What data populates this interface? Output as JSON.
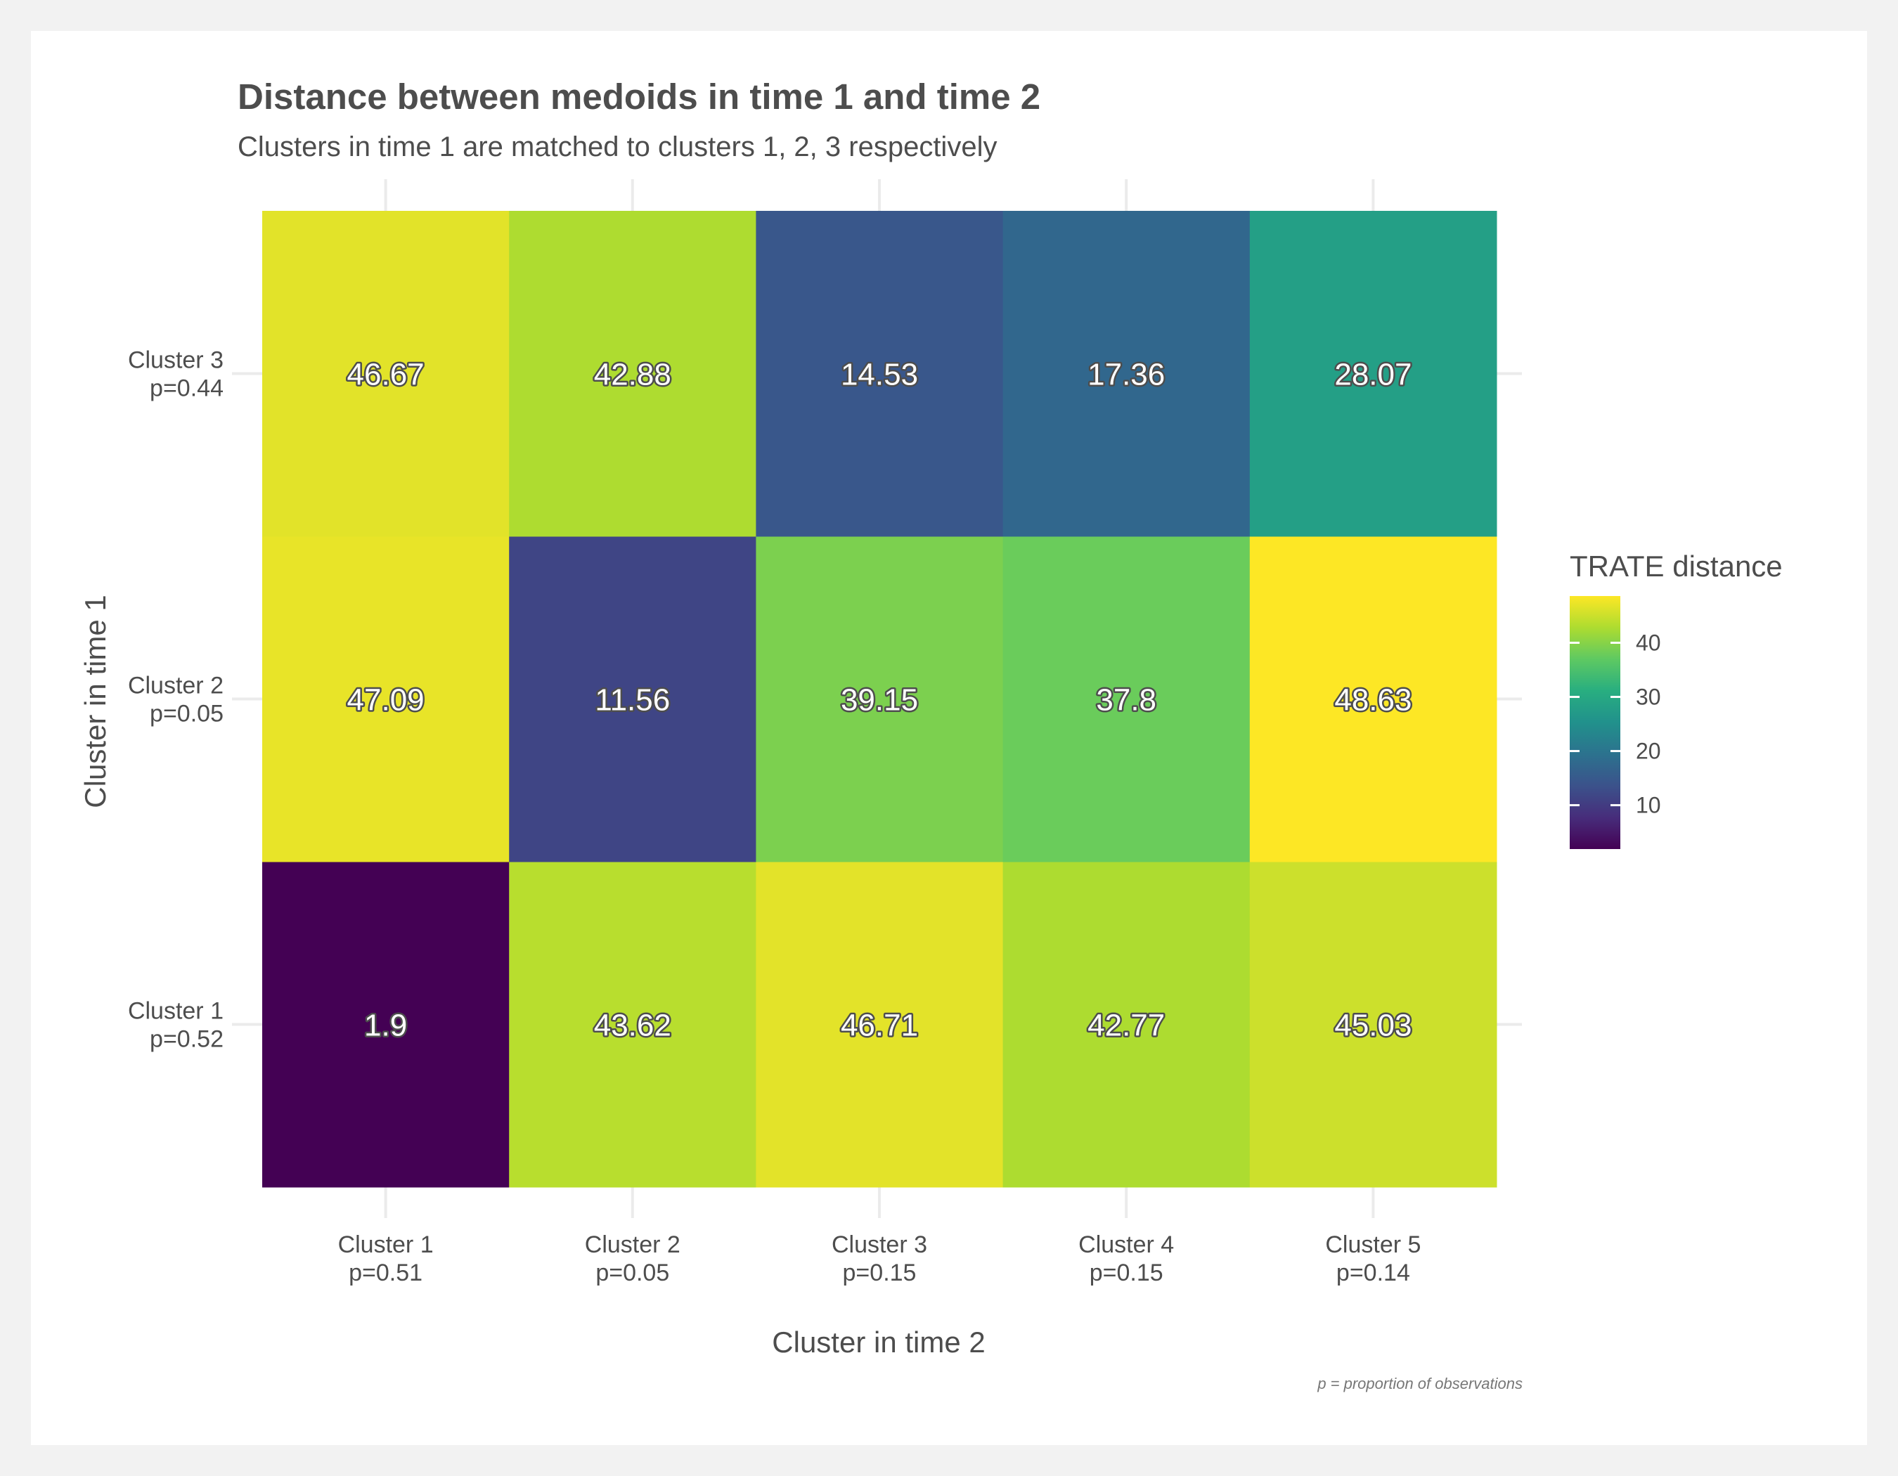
{
  "chart_data": {
    "type": "heatmap",
    "title": "Distance between medoids in time 1 and time 2",
    "subtitle": "Clusters in time 1 are matched to clusters 1, 2, 3 respectively",
    "xlabel": "Cluster in time 2",
    "ylabel": "Cluster in time 1",
    "x_categories": [
      {
        "name": "Cluster 1",
        "p": "p=0.51"
      },
      {
        "name": "Cluster 2",
        "p": "p=0.05"
      },
      {
        "name": "Cluster 3",
        "p": "p=0.15"
      },
      {
        "name": "Cluster 4",
        "p": "p=0.15"
      },
      {
        "name": "Cluster 5",
        "p": "p=0.14"
      }
    ],
    "y_categories": [
      {
        "name": "Cluster 1",
        "p": "p=0.52"
      },
      {
        "name": "Cluster 2",
        "p": "p=0.05"
      },
      {
        "name": "Cluster 3",
        "p": "p=0.44"
      }
    ],
    "values": [
      [
        1.9,
        43.62,
        46.71,
        42.77,
        45.03
      ],
      [
        47.09,
        11.56,
        39.15,
        37.8,
        48.63
      ],
      [
        46.67,
        42.88,
        14.53,
        17.36,
        28.07
      ]
    ],
    "value_labels": [
      [
        "1.9",
        "43.62",
        "46.71",
        "42.77",
        "45.03"
      ],
      [
        "47.09",
        "11.56",
        "39.15",
        "37.8",
        "48.63"
      ],
      [
        "46.67",
        "42.88",
        "14.53",
        "17.36",
        "28.07"
      ]
    ],
    "legend": {
      "title": "TRATE distance",
      "ticks": [
        10,
        20,
        30,
        40
      ],
      "range": [
        1.9,
        48.63
      ],
      "colormap": "viridis",
      "placement": "right"
    },
    "caption": "p = proportion of observations",
    "grid": true
  },
  "colors": {
    "page_background": "#f2f2f2",
    "panel_background": "#ffffff",
    "text": "#4d4d4d",
    "grid": "#ebebeb",
    "viridis": [
      "#440154",
      "#472d7b",
      "#3b528b",
      "#2c728e",
      "#21918c",
      "#28ae80",
      "#5ec962",
      "#addc30",
      "#fde725"
    ]
  }
}
